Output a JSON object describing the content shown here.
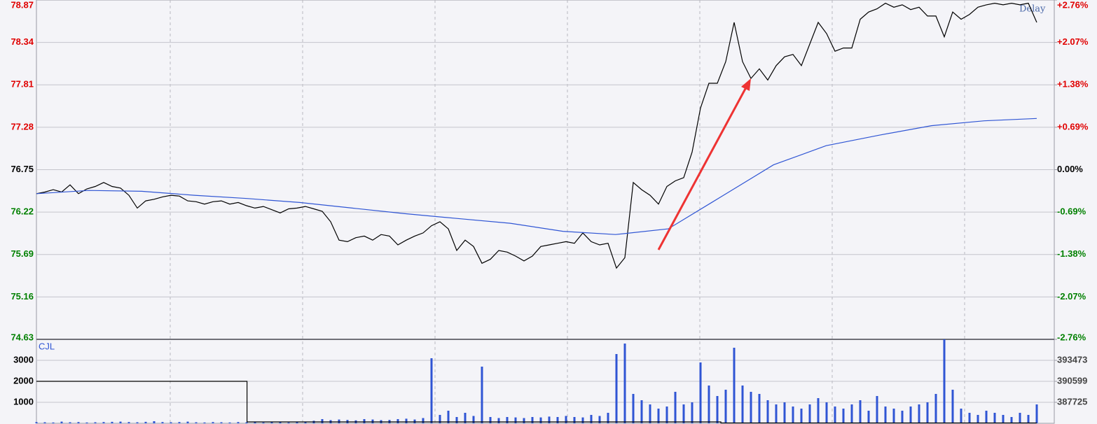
{
  "chart_data": [
    {
      "type": "line",
      "annotation": "Delay",
      "ylim": [
        74.63,
        78.87
      ],
      "yticks": [
        74.63,
        75.16,
        75.69,
        76.22,
        76.75,
        77.28,
        77.81,
        78.34,
        78.87
      ],
      "y2lim": [
        -2.76,
        2.76
      ],
      "y2ticks": [
        {
          "value": -2.76,
          "label": "-2.76%"
        },
        {
          "value": -2.07,
          "label": "-2.07%"
        },
        {
          "value": -1.38,
          "label": "-1.38%"
        },
        {
          "value": -0.69,
          "label": "-0.69%"
        },
        {
          "value": 0,
          "label": "0.00%"
        },
        {
          "value": 0.69,
          "label": "+0.69%"
        },
        {
          "value": 1.38,
          "label": "+1.38%"
        },
        {
          "value": 2.07,
          "label": "+2.07%"
        },
        {
          "value": 2.76,
          "label": "+2.76%"
        }
      ],
      "up_color": "#e00000",
      "down_color": "#008000",
      "flat_color": "#000000",
      "grid": true,
      "series": [
        {
          "color": "#000000",
          "values": [
            76.45,
            76.47,
            76.5,
            76.47,
            76.56,
            76.45,
            76.51,
            76.54,
            76.59,
            76.54,
            76.52,
            76.43,
            76.27,
            76.36,
            76.38,
            76.41,
            76.43,
            76.42,
            76.36,
            76.35,
            76.32,
            76.35,
            76.36,
            76.32,
            76.34,
            76.3,
            76.27,
            76.29,
            76.25,
            76.21,
            76.26,
            76.27,
            76.29,
            76.26,
            76.23,
            76.1,
            75.87,
            75.85,
            75.9,
            75.92,
            75.87,
            75.94,
            75.92,
            75.81,
            75.87,
            75.92,
            75.96,
            76.05,
            76.1,
            76.01,
            75.74,
            75.87,
            75.79,
            75.58,
            75.63,
            75.74,
            75.72,
            75.67,
            75.61,
            75.67,
            75.79,
            75.81,
            75.83,
            75.85,
            75.83,
            75.96,
            75.85,
            75.81,
            75.83,
            75.52,
            75.65,
            76.59,
            76.5,
            76.43,
            76.32,
            76.54,
            76.61,
            76.65,
            76.97,
            77.52,
            77.83,
            77.83,
            78.1,
            78.59,
            78.1,
            77.89,
            78.01,
            77.87,
            78.05,
            78.16,
            78.19,
            78.05,
            78.32,
            78.59,
            78.45,
            78.23,
            78.27,
            78.27,
            78.63,
            78.72,
            78.76,
            78.83,
            78.78,
            78.81,
            78.75,
            78.78,
            78.67,
            78.67,
            78.41,
            78.72,
            78.63,
            78.69,
            78.78,
            78.81,
            78.83,
            78.81,
            78.83,
            78.81,
            78.83,
            78.59
          ]
        },
        {
          "color": "#2f55d4",
          "values": [
            76.45,
            76.49,
            76.48,
            76.43,
            76.39,
            76.34,
            76.27,
            76.2,
            76.14,
            76.08,
            75.98,
            75.94,
            76.01,
            76.41,
            76.81,
            77.05,
            77.18,
            77.3,
            77.36,
            77.39
          ]
        }
      ]
    },
    {
      "type": "bar",
      "label": "CJL",
      "ylim": [
        0,
        4000
      ],
      "yticks": [
        1000,
        2000,
        3000
      ],
      "y2lim": [
        384851,
        396347
      ],
      "y2ticks": [
        387725,
        390599,
        393473
      ],
      "grid": true,
      "series": [
        {
          "color": "#2f55d4",
          "values": [
            60,
            50,
            40,
            80,
            50,
            60,
            40,
            50,
            60,
            70,
            80,
            60,
            50,
            70,
            100,
            60,
            50,
            60,
            80,
            50,
            40,
            60,
            50,
            40,
            60,
            50,
            60,
            40,
            50,
            60,
            40,
            50,
            80,
            120,
            200,
            150,
            180,
            160,
            140,
            200,
            180,
            150,
            160,
            200,
            220,
            180,
            250,
            3100,
            400,
            600,
            300,
            500,
            350,
            2700,
            300,
            250,
            300,
            280,
            250,
            300,
            280,
            320,
            300,
            350,
            300,
            280,
            400,
            350,
            500,
            3300,
            3800,
            1400,
            1100,
            900,
            700,
            800,
            1500,
            900,
            1000,
            2900,
            1800,
            1300,
            1600,
            3600,
            1800,
            1500,
            1400,
            1100,
            900,
            1000,
            800,
            700,
            900,
            1200,
            1000,
            800,
            700,
            900,
            1100,
            600,
            1300,
            800,
            700,
            600,
            800,
            900,
            1000,
            1400,
            4000,
            1600,
            700,
            500,
            400,
            600,
            500,
            400,
            300,
            500,
            400,
            900
          ]
        },
        {
          "type": "step",
          "axis": "y2",
          "color": "#000000",
          "values": [
            390599,
            390599,
            390599,
            390599,
            385040,
            385040,
            385040,
            385040,
            385040,
            385040,
            385040,
            385040,
            385040,
            384900,
            384900,
            384900,
            384900,
            384900,
            384900,
            384900
          ]
        }
      ]
    }
  ]
}
